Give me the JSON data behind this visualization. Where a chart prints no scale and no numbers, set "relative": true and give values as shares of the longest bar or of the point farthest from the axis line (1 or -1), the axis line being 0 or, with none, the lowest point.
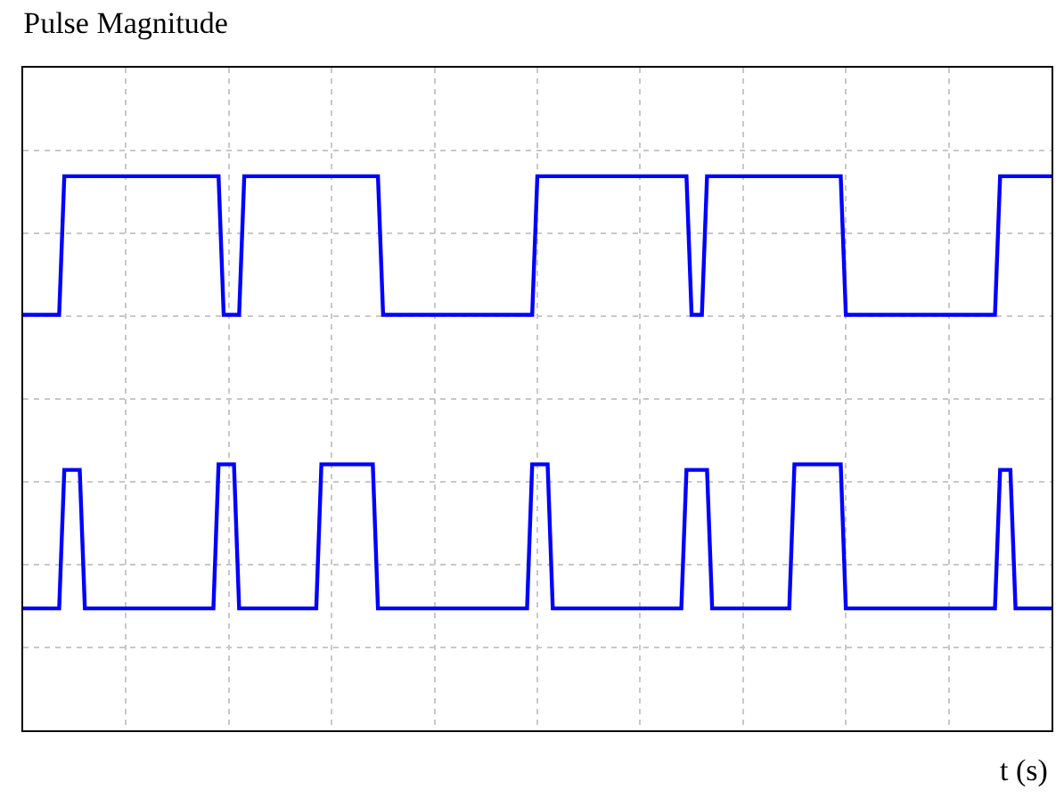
{
  "chart_data": {
    "type": "line",
    "title": "Pulse Magnitude",
    "xlabel": "t (s)",
    "relative": true,
    "grid": true,
    "marker": "none",
    "line_style": "solid",
    "categories": [
      null,
      null,
      null,
      null,
      null,
      null,
      null,
      null,
      null,
      null,
      null,
      null,
      null,
      null,
      null,
      null,
      null,
      null,
      null,
      null,
      null,
      null,
      null,
      null,
      null,
      null,
      null,
      null,
      null,
      null,
      null,
      null,
      null,
      null,
      null,
      null,
      null,
      null,
      null,
      null,
      null,
      null,
      null,
      null,
      null,
      null,
      null,
      null,
      null,
      null,
      null,
      null,
      null,
      null,
      null,
      null,
      null,
      null,
      null,
      null,
      null,
      null,
      null,
      null,
      null,
      null,
      null,
      null,
      null,
      null,
      null,
      null,
      null,
      null,
      null,
      null,
      null,
      null,
      null,
      null,
      null,
      null,
      null,
      null,
      null,
      null,
      null,
      null,
      null,
      null,
      null,
      null,
      null,
      null,
      null,
      null,
      null,
      null,
      null,
      null,
      null,
      null,
      null,
      null,
      null,
      null,
      null,
      null,
      null,
      null,
      null,
      null,
      null,
      null,
      null,
      null,
      null,
      null,
      null,
      null,
      null,
      null,
      null,
      null,
      null,
      null,
      null,
      null,
      null,
      null,
      null,
      null,
      null,
      null,
      null,
      null,
      null,
      null,
      null,
      null,
      null,
      null,
      null,
      null,
      null,
      null,
      null,
      null,
      null,
      null,
      null,
      null,
      null,
      null,
      null,
      null,
      null,
      null,
      null,
      null,
      null,
      null,
      null,
      null,
      null,
      null,
      null,
      null,
      null,
      null,
      null,
      null,
      null,
      null,
      null,
      null,
      null,
      null,
      null,
      null,
      null,
      null,
      null,
      null,
      null,
      null,
      null,
      null,
      null,
      null,
      null,
      null,
      null,
      null,
      null,
      null,
      null,
      null,
      null,
      null,
      null
    ],
    "series": [
      {
        "color": "#0000ff",
        "values": [
          0.75,
          0.75,
          0.75,
          0.75,
          0.75,
          0.75,
          0.75,
          0.75,
          1,
          1,
          1,
          1,
          1,
          1,
          1,
          1,
          1,
          1,
          1,
          1,
          1,
          1,
          1,
          1,
          1,
          1,
          1,
          1,
          1,
          1,
          1,
          1,
          1,
          1,
          1,
          1,
          1,
          1,
          1,
          0.75,
          0.75,
          0.75,
          0.75,
          1,
          1,
          1,
          1,
          1,
          1,
          1,
          1,
          1,
          1,
          1,
          1,
          1,
          1,
          1,
          1,
          1,
          1,
          1,
          1,
          1,
          1,
          1,
          1,
          1,
          1,
          1,
          0.75,
          0.75,
          0.75,
          0.75,
          0.75,
          0.75,
          0.75,
          0.75,
          0.75,
          0.75,
          0.75,
          0.75,
          0.75,
          0.75,
          0.75,
          0.75,
          0.75,
          0.75,
          0.75,
          0.75,
          0.75,
          0.75,
          0.75,
          0.75,
          0.75,
          0.75,
          0.75,
          0.75,
          0.75,
          0.75,
          1,
          1,
          1,
          1,
          1,
          1,
          1,
          1,
          1,
          1,
          1,
          1,
          1,
          1,
          1,
          1,
          1,
          1,
          1,
          1,
          1,
          1,
          1,
          1,
          1,
          1,
          1,
          1,
          1,
          1,
          0.75,
          0.75,
          0.75,
          1,
          1,
          1,
          1,
          1,
          1,
          1,
          1,
          1,
          1,
          1,
          1,
          1,
          1,
          1,
          1,
          1,
          1,
          1,
          1,
          1,
          1,
          1,
          1,
          1,
          1,
          1,
          0.75,
          0.75,
          0.75,
          0.75,
          0.75,
          0.75,
          0.75,
          0.75,
          0.75,
          0.75,
          0.75,
          0.75,
          0.75,
          0.75,
          0.75,
          0.75,
          0.75,
          0.75,
          0.75,
          0.75,
          0.75,
          0.75,
          0.75,
          0.75,
          0.75,
          0.75,
          0.75,
          0.75,
          0.75,
          0.75,
          1,
          1,
          1,
          1,
          1,
          1,
          1,
          1,
          1,
          1,
          1
        ]
      },
      {
        "color": "#0000ff",
        "values": [
          0.22,
          0.22,
          0.22,
          0.22,
          0.22,
          0.22,
          0.22,
          0.22,
          0.47,
          0.47,
          0.47,
          0.47,
          0.22,
          0.22,
          0.22,
          0.22,
          0.22,
          0.22,
          0.22,
          0.22,
          0.22,
          0.22,
          0.22,
          0.22,
          0.22,
          0.22,
          0.22,
          0.22,
          0.22,
          0.22,
          0.22,
          0.22,
          0.22,
          0.22,
          0.22,
          0.22,
          0.22,
          0.22,
          0.48,
          0.48,
          0.48,
          0.48,
          0.22,
          0.22,
          0.22,
          0.22,
          0.22,
          0.22,
          0.22,
          0.22,
          0.22,
          0.22,
          0.22,
          0.22,
          0.22,
          0.22,
          0.22,
          0.22,
          0.48,
          0.48,
          0.48,
          0.48,
          0.48,
          0.48,
          0.48,
          0.48,
          0.48,
          0.48,
          0.48,
          0.22,
          0.22,
          0.22,
          0.22,
          0.22,
          0.22,
          0.22,
          0.22,
          0.22,
          0.22,
          0.22,
          0.22,
          0.22,
          0.22,
          0.22,
          0.22,
          0.22,
          0.22,
          0.22,
          0.22,
          0.22,
          0.22,
          0.22,
          0.22,
          0.22,
          0.22,
          0.22,
          0.22,
          0.22,
          0.22,
          0.48,
          0.48,
          0.48,
          0.48,
          0.22,
          0.22,
          0.22,
          0.22,
          0.22,
          0.22,
          0.22,
          0.22,
          0.22,
          0.22,
          0.22,
          0.22,
          0.22,
          0.22,
          0.22,
          0.22,
          0.22,
          0.22,
          0.22,
          0.22,
          0.22,
          0.22,
          0.22,
          0.22,
          0.22,
          0.22,
          0.47,
          0.47,
          0.47,
          0.47,
          0.47,
          0.22,
          0.22,
          0.22,
          0.22,
          0.22,
          0.22,
          0.22,
          0.22,
          0.22,
          0.22,
          0.22,
          0.22,
          0.22,
          0.22,
          0.22,
          0.22,
          0.48,
          0.48,
          0.48,
          0.48,
          0.48,
          0.48,
          0.48,
          0.48,
          0.48,
          0.48,
          0.22,
          0.22,
          0.22,
          0.22,
          0.22,
          0.22,
          0.22,
          0.22,
          0.22,
          0.22,
          0.22,
          0.22,
          0.22,
          0.22,
          0.22,
          0.22,
          0.22,
          0.22,
          0.22,
          0.22,
          0.22,
          0.22,
          0.22,
          0.22,
          0.22,
          0.22,
          0.22,
          0.22,
          0.22,
          0.22,
          0.47,
          0.47,
          0.47,
          0.22,
          0.22,
          0.22,
          0.22,
          0.22,
          0.22,
          0.22,
          0.22
        ]
      }
    ]
  }
}
